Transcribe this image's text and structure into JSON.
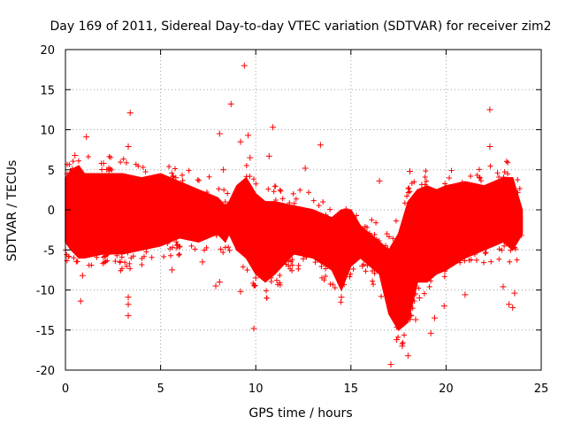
{
  "chart_data": {
    "type": "scatter",
    "title": "Day 169 of 2011, Sidereal Day-to-day VTEC variation (SDTVAR) for receiver zim2",
    "xlabel": "GPS time / hours",
    "ylabel": "SDTVAR / TECUs",
    "xlim": [
      0,
      25
    ],
    "ylim": [
      -20,
      20
    ],
    "xticks": [
      "0",
      "5",
      "10",
      "15",
      "20",
      "25"
    ],
    "yticks": [
      "-20",
      "-15",
      "-10",
      "-5",
      "0",
      "5",
      "10",
      "15",
      "20"
    ],
    "grid": true,
    "marker": "+",
    "color": "#ff0000",
    "envelope": {
      "x": [
        0.0,
        0.3,
        0.7,
        1.0,
        2.0,
        3.0,
        4.0,
        5.0,
        6.0,
        7.0,
        8.0,
        8.4,
        8.6,
        9.0,
        9.5,
        10.0,
        10.5,
        11.0,
        12.0,
        13.0,
        14.0,
        14.5,
        15.0,
        15.5,
        16.0,
        16.5,
        17.0,
        17.5,
        18.0,
        18.5,
        19.0,
        19.5,
        20.0,
        21.0,
        22.0,
        23.0,
        23.5,
        24.0
      ],
      "upper": [
        4.0,
        5.0,
        5.5,
        4.5,
        4.5,
        4.5,
        4.0,
        4.5,
        3.5,
        2.5,
        1.5,
        0.5,
        1.0,
        3.0,
        4.0,
        2.0,
        1.0,
        1.0,
        0.5,
        0.0,
        -1.0,
        0.0,
        0.0,
        -2.0,
        -3.0,
        -4.0,
        -5.0,
        -3.0,
        1.0,
        2.5,
        3.0,
        2.5,
        3.0,
        3.5,
        3.0,
        4.0,
        4.0,
        0.0
      ],
      "lower": [
        -4.0,
        -5.0,
        -6.0,
        -6.0,
        -5.5,
        -5.5,
        -5.0,
        -4.5,
        -3.5,
        -4.0,
        -3.0,
        -4.0,
        -3.0,
        -5.0,
        -6.0,
        -8.0,
        -9.0,
        -8.0,
        -5.5,
        -6.0,
        -7.5,
        -10.0,
        -7.0,
        -6.0,
        -7.0,
        -8.0,
        -13.0,
        -15.0,
        -14.0,
        -9.0,
        -9.0,
        -8.0,
        -7.5,
        -6.0,
        -5.0,
        -4.0,
        -5.0,
        -3.0
      ]
    },
    "outliers": [
      {
        "x": 9.4,
        "y": 18.0
      },
      {
        "x": 8.7,
        "y": 13.2
      },
      {
        "x": 3.4,
        "y": 12.1
      },
      {
        "x": 22.3,
        "y": 12.5
      },
      {
        "x": 10.9,
        "y": 10.3
      },
      {
        "x": 1.1,
        "y": 9.1
      },
      {
        "x": 9.6,
        "y": 9.3
      },
      {
        "x": 8.1,
        "y": 9.5
      },
      {
        "x": 9.2,
        "y": 8.5
      },
      {
        "x": 3.3,
        "y": 7.9
      },
      {
        "x": 13.4,
        "y": 8.1
      },
      {
        "x": 22.3,
        "y": 7.9
      },
      {
        "x": 9.7,
        "y": 6.5
      },
      {
        "x": 0.5,
        "y": 6.8
      },
      {
        "x": 10.7,
        "y": 6.7
      },
      {
        "x": 8.3,
        "y": 5.0
      },
      {
        "x": 12.6,
        "y": 5.2
      },
      {
        "x": 2.0,
        "y": 5.8
      },
      {
        "x": 5.8,
        "y": 4.0
      },
      {
        "x": 16.5,
        "y": 3.6
      },
      {
        "x": 18.1,
        "y": 4.8
      },
      {
        "x": 0.8,
        "y": -11.4
      },
      {
        "x": 3.3,
        "y": -10.9
      },
      {
        "x": 3.3,
        "y": -11.8
      },
      {
        "x": 3.3,
        "y": -13.2
      },
      {
        "x": 9.9,
        "y": -14.8
      },
      {
        "x": 21.0,
        "y": -10.6
      },
      {
        "x": 8.1,
        "y": -9.0
      },
      {
        "x": 9.2,
        "y": -10.2
      },
      {
        "x": 10.0,
        "y": -8.5
      },
      {
        "x": 7.9,
        "y": -9.5
      },
      {
        "x": 17.1,
        "y": -19.3
      },
      {
        "x": 17.4,
        "y": -16.2
      },
      {
        "x": 18.0,
        "y": -18.2
      },
      {
        "x": 17.7,
        "y": -17.0
      },
      {
        "x": 18.4,
        "y": -13.7
      },
      {
        "x": 19.2,
        "y": -15.4
      },
      {
        "x": 19.4,
        "y": -13.5
      },
      {
        "x": 23.5,
        "y": -12.2
      },
      {
        "x": 23.3,
        "y": -11.8
      },
      {
        "x": 23.6,
        "y": -10.4
      },
      {
        "x": 23.0,
        "y": -9.6
      },
      {
        "x": 14.5,
        "y": -10.9
      },
      {
        "x": 5.6,
        "y": -7.5
      },
      {
        "x": 7.2,
        "y": -6.5
      },
      {
        "x": 0.9,
        "y": -8.2
      },
      {
        "x": 15.6,
        "y": -7.0
      },
      {
        "x": 12.5,
        "y": -6.1
      },
      {
        "x": 19.9,
        "y": -12.0
      },
      {
        "x": 18.6,
        "y": -11.0
      }
    ]
  }
}
